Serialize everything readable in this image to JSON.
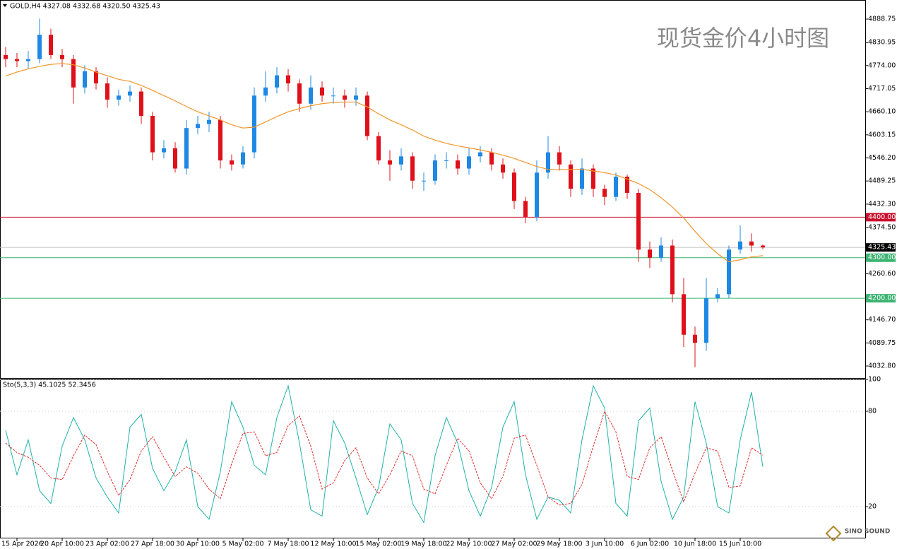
{
  "chart_data": [
    {
      "type": "candlestick",
      "title": "现货金价4小时图",
      "header": "GOLD,H4 4327.08 4332.68 4320.50 4325.43",
      "categories": [
        null,
        "15 Apr 2026",
        null,
        null,
        null,
        "20 Apr 10:00",
        null,
        null,
        null,
        "23 Apr 02:00",
        null,
        null,
        null,
        "27 Apr 18:00",
        null,
        null,
        null,
        "30 Apr 10:00",
        null,
        null,
        null,
        "5 May 02:00",
        null,
        null,
        null,
        "7 May 18:00",
        null,
        null,
        null,
        "12 May 10:00",
        null,
        null,
        null,
        "15 May 02:00",
        null,
        null,
        null,
        "19 May 18:00",
        null,
        null,
        null,
        "22 May 10:00",
        null,
        null,
        null,
        "27 May 02:00",
        null,
        null,
        null,
        "29 May 18:00",
        null,
        null,
        null,
        "3 Jun 10:00",
        null,
        null,
        null,
        "6 Jun 02:00",
        null,
        null,
        null,
        "10 Jun 18:00",
        null,
        null,
        null,
        "15 Jun 10:00",
        null,
        null
      ],
      "open": [
        4800,
        4790,
        4785,
        4790,
        4850,
        4800,
        4790,
        4720,
        4760,
        4730,
        4690,
        4700,
        4710,
        4650,
        4560,
        4570,
        4520,
        4620,
        4630,
        4640,
        4540,
        4530,
        4560,
        4700,
        4720,
        4750,
        4730,
        4680,
        4720,
        4700,
        4700,
        4690,
        4700,
        4600,
        4540,
        4530,
        4550,
        4490,
        4490,
        4540,
        4540,
        4520,
        4550,
        4560,
        4530,
        4510,
        4440,
        4400,
        4510,
        4560,
        4530,
        4470,
        4520,
        4470,
        4450,
        4500,
        4460,
        4320,
        4300,
        4330,
        4210,
        4110,
        4090,
        4200,
        4210,
        4320,
        4340,
        4330
      ],
      "high": [
        4820,
        4805,
        4810,
        4890,
        4865,
        4815,
        4800,
        4775,
        4770,
        4745,
        4715,
        4725,
        4720,
        4660,
        4590,
        4585,
        4640,
        4650,
        4660,
        4650,
        4555,
        4575,
        4720,
        4760,
        4770,
        4765,
        4740,
        4750,
        4735,
        4720,
        4715,
        4720,
        4710,
        4610,
        4565,
        4570,
        4560,
        4510,
        4555,
        4560,
        4555,
        4570,
        4575,
        4570,
        4545,
        4520,
        4450,
        4540,
        4600,
        4575,
        4540,
        4545,
        4530,
        4480,
        4510,
        4505,
        4470,
        4340,
        4350,
        4345,
        4250,
        4130,
        4250,
        4225,
        4330,
        4380,
        4360,
        4332.68
      ],
      "low": [
        4770,
        4770,
        4765,
        4780,
        4790,
        4770,
        4680,
        4705,
        4715,
        4670,
        4675,
        4685,
        4630,
        4540,
        4545,
        4510,
        4505,
        4605,
        4610,
        4520,
        4515,
        4520,
        4545,
        4685,
        4705,
        4710,
        4660,
        4665,
        4685,
        4680,
        4670,
        4675,
        4590,
        4530,
        4490,
        4515,
        4470,
        4465,
        4480,
        4520,
        4505,
        4505,
        4535,
        4515,
        4495,
        4420,
        4385,
        4390,
        4495,
        4515,
        4450,
        4455,
        4450,
        4430,
        4440,
        4445,
        4290,
        4275,
        4290,
        4190,
        4080,
        4030,
        4070,
        4190,
        4200,
        4310,
        4315,
        4320.5
      ],
      "close": [
        4790,
        4785,
        4790,
        4850,
        4800,
        4790,
        4720,
        4760,
        4730,
        4690,
        4700,
        4710,
        4650,
        4560,
        4570,
        4520,
        4620,
        4630,
        4640,
        4540,
        4530,
        4560,
        4700,
        4720,
        4750,
        4730,
        4680,
        4720,
        4700,
        4700,
        4690,
        4700,
        4600,
        4540,
        4530,
        4550,
        4490,
        4490,
        4540,
        4540,
        4520,
        4550,
        4560,
        4530,
        4510,
        4440,
        4400,
        4510,
        4560,
        4530,
        4470,
        4520,
        4470,
        4450,
        4500,
        4460,
        4320,
        4300,
        4330,
        4210,
        4110,
        4090,
        4200,
        4210,
        4320,
        4340,
        4330,
        4325.43
      ],
      "up_color": "#1e88e5",
      "down_color": "#e0101a",
      "ma": {
        "color": "#f0962a",
        "values": [
          4748,
          4758,
          4766,
          4772,
          4777,
          4779,
          4776,
          4768,
          4758,
          4749,
          4740,
          4735,
          4725,
          4713,
          4700,
          4687,
          4673,
          4660,
          4650,
          4640,
          4628,
          4620,
          4622,
          4635,
          4648,
          4660,
          4668,
          4675,
          4680,
          4683,
          4684,
          4684,
          4672,
          4655,
          4640,
          4628,
          4615,
          4600,
          4590,
          4582,
          4576,
          4571,
          4566,
          4560,
          4553,
          4545,
          4535,
          4525,
          4518,
          4517,
          4518,
          4518,
          4514,
          4510,
          4504,
          4494,
          4483,
          4468,
          4448,
          4425,
          4398,
          4365,
          4335,
          4310,
          4290,
          4295,
          4302,
          4305
        ]
      },
      "levels": [
        {
          "value": 4400,
          "label": "4400.00",
          "color": "#c8102e"
        },
        {
          "value": 4300,
          "label": "4300.00",
          "color": "#3cb371"
        },
        {
          "value": 4200,
          "label": "4200.00",
          "color": "#3cb371"
        }
      ],
      "current": 4325.43,
      "ylim": [
        4003.2,
        4935.8
      ],
      "yticks": [
        4888.75,
        4830.95,
        {
          "value": 4774,
          "label": "4774.00"
        },
        4717.05,
        {
          "value": 4660.1,
          "label": "4660.10"
        },
        4603.15,
        {
          "value": 4546.2,
          "label": "4546.20"
        },
        4489.25,
        {
          "value": 4432.3,
          "label": "4432.30"
        },
        {
          "value": 4374.5,
          "label": "4374.50"
        },
        {
          "value": 4260.6,
          "label": "4260.60"
        },
        {
          "value": 4146.7,
          "label": "4146.70"
        },
        4089.75,
        {
          "value": 4032.8,
          "label": "4032.80"
        }
      ]
    },
    {
      "type": "line",
      "header": "Sto(5,3,3) 45.1025 52.3456",
      "series": [
        {
          "color": "#20b2aa",
          "values": [
            68,
            40,
            62,
            30,
            22,
            58,
            76,
            62,
            38,
            26,
            16,
            70,
            78,
            44,
            30,
            42,
            62,
            20,
            12,
            42,
            86,
            70,
            46,
            40,
            76,
            96,
            60,
            18,
            14,
            74,
            60,
            38,
            15,
            32,
            72,
            62,
            22,
            10,
            52,
            76,
            60,
            30,
            14,
            32,
            70,
            86,
            40,
            12,
            26,
            24,
            16,
            62,
            96,
            82,
            22,
            14,
            74,
            82,
            36,
            12,
            26,
            86,
            60,
            20,
            16,
            62,
            92,
            45.1025
          ]
        },
        {
          "color": "#e03030",
          "values": [
            60,
            54,
            51,
            46,
            38,
            37,
            52,
            65,
            59,
            42,
            27,
            37,
            55,
            64,
            51,
            39,
            45,
            41,
            31,
            25,
            47,
            66,
            67,
            52,
            54,
            71,
            77,
            58,
            31,
            35,
            49,
            57,
            38,
            28,
            40,
            55,
            52,
            31,
            28,
            46,
            63,
            55,
            35,
            25,
            39,
            63,
            65,
            46,
            26,
            21,
            22,
            34,
            58,
            80,
            67,
            39,
            37,
            57,
            64,
            43,
            23,
            41,
            57,
            55,
            32,
            33,
            57,
            52.3456
          ]
        }
      ],
      "ylim": [
        0,
        100
      ],
      "yticks": [
        100,
        80,
        20
      ]
    }
  ],
  "watermark": "SINO SOUND"
}
